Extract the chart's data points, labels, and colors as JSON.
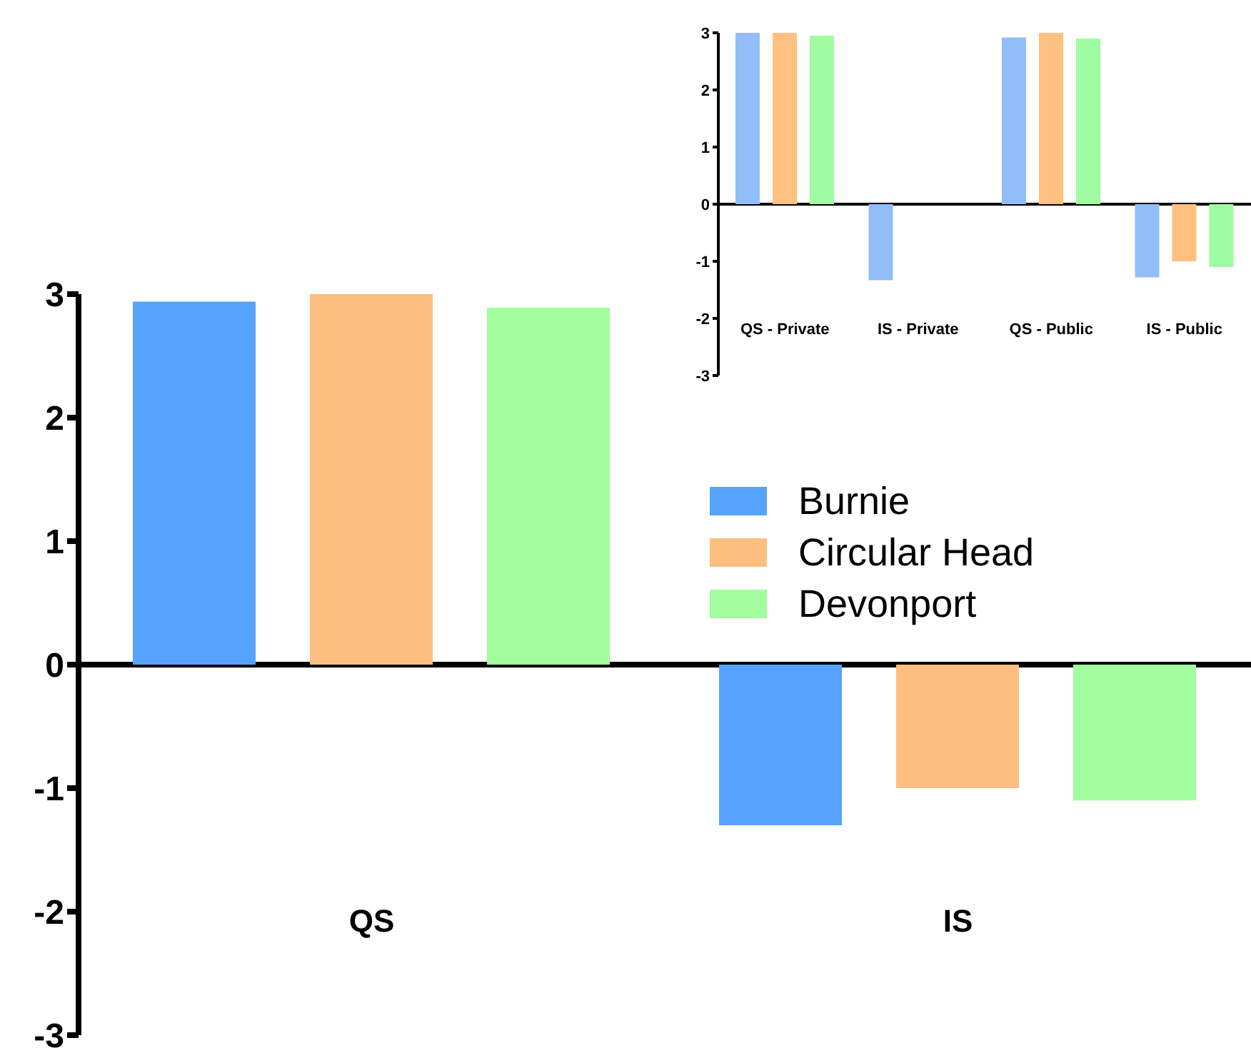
{
  "chart_data": [
    {
      "type": "bar",
      "categories": [
        "QS",
        "IS"
      ],
      "series": [
        {
          "name": "Burnie",
          "color": "#55a3fd",
          "values": [
            2.94,
            -1.3
          ]
        },
        {
          "name": "Circular Head",
          "color": "#fdbf80",
          "values": [
            3.0,
            -1.0
          ]
        },
        {
          "name": "Devonport",
          "color": "#a2fd9e",
          "values": [
            2.89,
            -1.1
          ]
        }
      ],
      "ylim": [
        -3,
        3
      ],
      "yticks": [
        -3,
        -2,
        -1,
        0,
        1,
        2,
        3
      ],
      "legend": "right"
    },
    {
      "type": "bar",
      "categories": [
        "QS - Private",
        "IS - Private",
        "QS - Public",
        "IS - Public"
      ],
      "series": [
        {
          "color": "#93bdf9",
          "values": [
            3.0,
            -1.33,
            2.92,
            -1.28
          ]
        },
        {
          "color": "#ffc080",
          "values": [
            3.0,
            null,
            3.0,
            -1.0
          ]
        },
        {
          "color": "#a0fca0",
          "values": [
            2.95,
            null,
            2.9,
            -1.1
          ]
        }
      ],
      "ylim": [
        -3,
        3
      ],
      "yticks": [
        -3,
        -2,
        -1,
        0,
        1,
        2,
        3
      ],
      "legend": false
    }
  ]
}
